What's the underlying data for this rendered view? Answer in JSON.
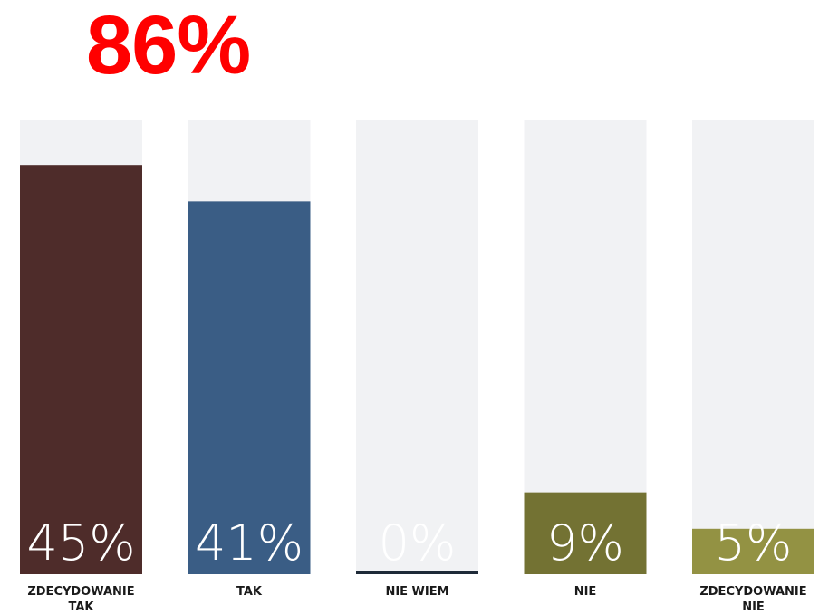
{
  "headline": {
    "text": "86%",
    "color": "#ff0000"
  },
  "chart_data": {
    "type": "bar",
    "categories": [
      [
        "ZDECYDOWANIE",
        "TAK"
      ],
      [
        "TAK"
      ],
      [
        "NIE WIEM"
      ],
      [
        "NIE"
      ],
      [
        "ZDECYDOWANIE",
        "NIE"
      ]
    ],
    "values": [
      45,
      41,
      0,
      9,
      5
    ],
    "value_labels": [
      "45%",
      "41%",
      "0%",
      "9%",
      "5%"
    ],
    "colors": [
      "#4e2c2a",
      "#3a5d85",
      "#1e2a38",
      "#737233",
      "#939243"
    ],
    "ylim": [
      0,
      50
    ],
    "title": "",
    "xlabel": "",
    "ylabel": "",
    "grid": false,
    "legend": "none",
    "track_color": "#f1f2f4"
  }
}
